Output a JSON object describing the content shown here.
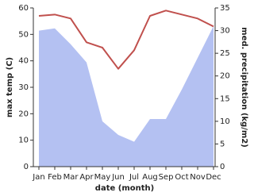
{
  "chart_data": {
    "type": "line-area",
    "x_label": "date (month)",
    "y_label": "max temp (C)",
    "y2_label": "med. precipitation (kg/m2)",
    "categories": [
      "Jan",
      "Feb",
      "Mar",
      "Apr",
      "May",
      "Jun",
      "Jul",
      "Aug",
      "Sep",
      "Oct",
      "Nov",
      "Dec"
    ],
    "series": [
      {
        "name": "max temp",
        "type": "line",
        "color": "#c0504d",
        "values": [
          57,
          57.5,
          56,
          47,
          45,
          37,
          44,
          57,
          59,
          57.5,
          56,
          53
        ]
      },
      {
        "name": "med. precipitation",
        "type": "area",
        "axis": "y2",
        "color": "#b4c1f2",
        "values": [
          30,
          30.5,
          27,
          23,
          10,
          7,
          5.5,
          10.5,
          10.5,
          17,
          24,
          31
        ]
      }
    ],
    "ylim": [
      0,
      60
    ],
    "yticks": [
      0,
      10,
      20,
      30,
      40,
      50,
      60
    ],
    "y2lim": [
      0,
      35
    ],
    "y2ticks": [
      0,
      5,
      10,
      15,
      20,
      25,
      30,
      35
    ]
  }
}
